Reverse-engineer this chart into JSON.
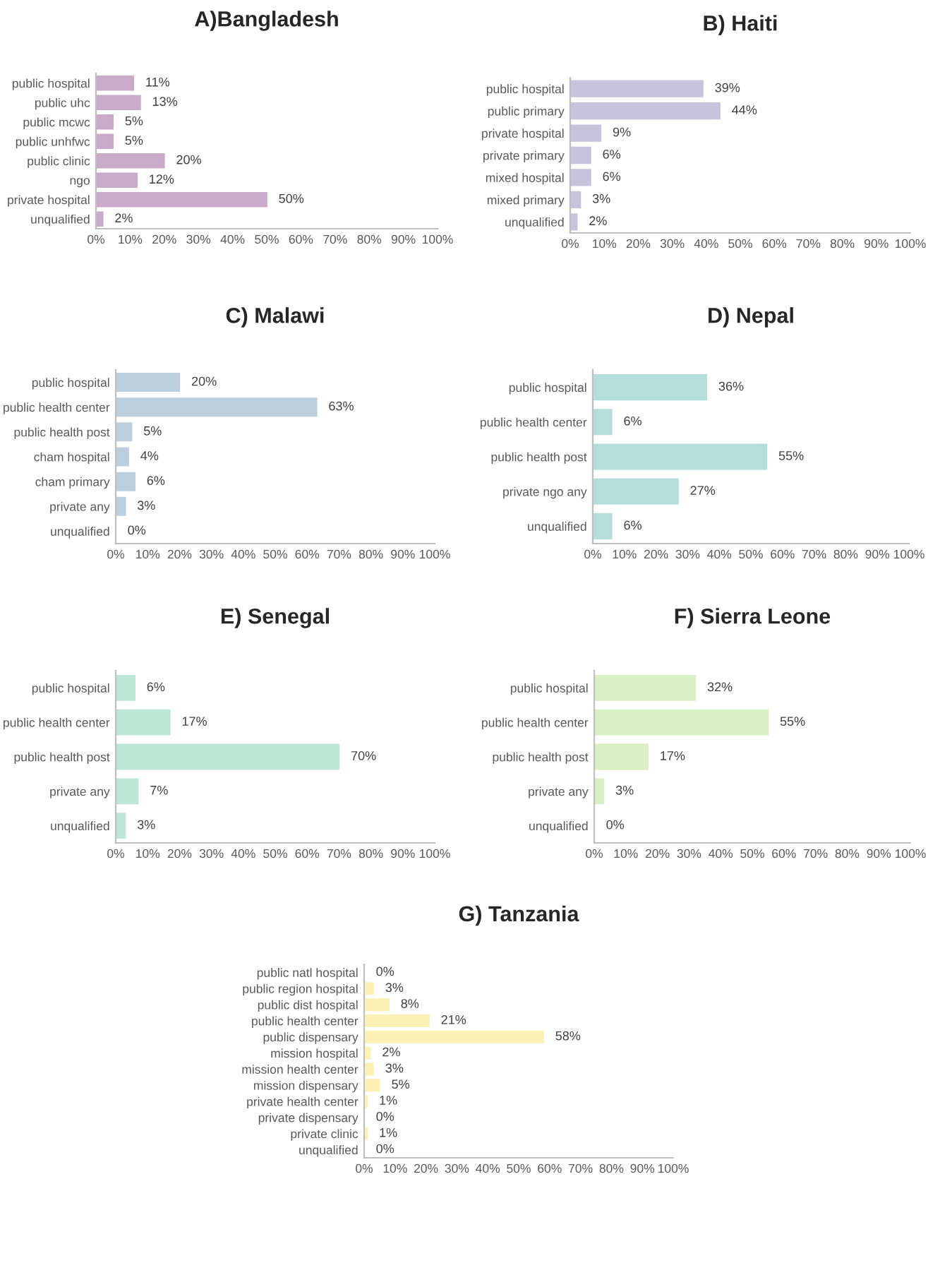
{
  "chart_data": [
    {
      "type": "bar",
      "orientation": "horizontal",
      "title": "A)Bangladesh",
      "categories": [
        "public hospital",
        "public uhc",
        "public mcwc",
        "public unhfwc",
        "public clinic",
        "ngo",
        "private hospital",
        "unqualified"
      ],
      "values": [
        11,
        13,
        5,
        5,
        20,
        12,
        50,
        2
      ],
      "value_labels": [
        "11%",
        "13%",
        "5%",
        "5%",
        "20%",
        "12%",
        "50%",
        "2%"
      ],
      "color": "#c9aac9",
      "xlim": [
        0,
        100
      ],
      "xticks": [
        {
          "value": 0,
          "label": "0%"
        },
        {
          "value": 10,
          "label": "10%"
        },
        {
          "value": 20,
          "label": "20%"
        },
        {
          "value": 30,
          "label": "30%"
        },
        {
          "value": 40,
          "label": "40%"
        },
        {
          "value": 50,
          "label": "50%"
        },
        {
          "value": 60,
          "label": "60%"
        },
        {
          "value": 70,
          "label": "70%"
        },
        {
          "value": 80,
          "label": "80%"
        },
        {
          "value": 90,
          "label": "90%"
        },
        {
          "value": 100,
          "label": "100%"
        }
      ]
    },
    {
      "type": "bar",
      "orientation": "horizontal",
      "title": "B) Haiti",
      "categories": [
        "public hospital",
        "public primary",
        "private hospital",
        "private primary",
        "mixed hospital",
        "mixed primary",
        "unqualified"
      ],
      "values": [
        39,
        44,
        9,
        6,
        6,
        3,
        2
      ],
      "value_labels": [
        "39%",
        "44%",
        "9%",
        "6%",
        "6%",
        "3%",
        "2%"
      ],
      "color": "#c6c3dd",
      "xlim": [
        0,
        100
      ],
      "xticks": [
        {
          "value": 0,
          "label": "0%"
        },
        {
          "value": 10,
          "label": "10%"
        },
        {
          "value": 20,
          "label": "20%"
        },
        {
          "value": 30,
          "label": "30%"
        },
        {
          "value": 40,
          "label": "40%"
        },
        {
          "value": 50,
          "label": "50%"
        },
        {
          "value": 60,
          "label": "60%"
        },
        {
          "value": 70,
          "label": "70%"
        },
        {
          "value": 80,
          "label": "80%"
        },
        {
          "value": 90,
          "label": "90%"
        },
        {
          "value": 100,
          "label": "100%"
        }
      ]
    },
    {
      "type": "bar",
      "orientation": "horizontal",
      "title": "C) Malawi",
      "categories": [
        "public hospital",
        "public health center",
        "public health post",
        "cham hospital",
        "cham primary",
        "private any",
        "unqualified"
      ],
      "values": [
        20,
        63,
        5,
        4,
        6,
        3,
        0
      ],
      "value_labels": [
        "20%",
        "63%",
        "5%",
        "4%",
        "6%",
        "3%",
        "0%"
      ],
      "color": "#bdcfdf",
      "xlim": [
        0,
        100
      ],
      "xticks": [
        {
          "value": 0,
          "label": "0%"
        },
        {
          "value": 10,
          "label": "10%"
        },
        {
          "value": 20,
          "label": "20%"
        },
        {
          "value": 30,
          "label": "30%"
        },
        {
          "value": 40,
          "label": "40%"
        },
        {
          "value": 50,
          "label": "50%"
        },
        {
          "value": 60,
          "label": "60%"
        },
        {
          "value": 70,
          "label": "70%"
        },
        {
          "value": 80,
          "label": "80%"
        },
        {
          "value": 90,
          "label": "90%"
        },
        {
          "value": 100,
          "label": "100%"
        }
      ]
    },
    {
      "type": "bar",
      "orientation": "horizontal",
      "title": "D) Nepal",
      "categories": [
        "public hospital",
        "public health center",
        "public health post",
        "private ngo any",
        "unqualified"
      ],
      "values": [
        36,
        6,
        55,
        27,
        6
      ],
      "value_labels": [
        "36%",
        "6%",
        "55%",
        "27%",
        "6%"
      ],
      "color": "#b5dedb",
      "xlim": [
        0,
        100
      ],
      "xticks": [
        {
          "value": 0,
          "label": "0%"
        },
        {
          "value": 10,
          "label": "10%"
        },
        {
          "value": 20,
          "label": "20%"
        },
        {
          "value": 30,
          "label": "30%"
        },
        {
          "value": 40,
          "label": "40%"
        },
        {
          "value": 50,
          "label": "50%"
        },
        {
          "value": 60,
          "label": "60%"
        },
        {
          "value": 70,
          "label": "70%"
        },
        {
          "value": 80,
          "label": "80%"
        },
        {
          "value": 90,
          "label": "90%"
        },
        {
          "value": 100,
          "label": "100%"
        }
      ]
    },
    {
      "type": "bar",
      "orientation": "horizontal",
      "title": "E) Senegal",
      "categories": [
        "public hospital",
        "public health center",
        "public health post",
        "private any",
        "unqualified"
      ],
      "values": [
        6,
        17,
        70,
        7,
        3
      ],
      "value_labels": [
        "6%",
        "17%",
        "70%",
        "7%",
        "3%"
      ],
      "color": "#bde7d4",
      "xlim": [
        0,
        100
      ],
      "xticks": [
        {
          "value": 0,
          "label": "0%"
        },
        {
          "value": 10,
          "label": "10%"
        },
        {
          "value": 20,
          "label": "20%"
        },
        {
          "value": 30,
          "label": "30%"
        },
        {
          "value": 40,
          "label": "40%"
        },
        {
          "value": 50,
          "label": "50%"
        },
        {
          "value": 60,
          "label": "60%"
        },
        {
          "value": 70,
          "label": "70%"
        },
        {
          "value": 80,
          "label": "80%"
        },
        {
          "value": 90,
          "label": "90%"
        },
        {
          "value": 100,
          "label": "100%"
        }
      ]
    },
    {
      "type": "bar",
      "orientation": "horizontal",
      "title": "F) Sierra Leone",
      "categories": [
        "public hospital",
        "public health center",
        "public health post",
        "private any",
        "unqualified"
      ],
      "values": [
        32,
        55,
        17,
        3,
        0
      ],
      "value_labels": [
        "32%",
        "55%",
        "17%",
        "3%",
        "0%"
      ],
      "color": "#d9f0c5",
      "xlim": [
        0,
        100
      ],
      "xticks": [
        {
          "value": 0,
          "label": "0%"
        },
        {
          "value": 10,
          "label": "10%"
        },
        {
          "value": 20,
          "label": "20%"
        },
        {
          "value": 30,
          "label": "30%"
        },
        {
          "value": 40,
          "label": "40%"
        },
        {
          "value": 50,
          "label": "50%"
        },
        {
          "value": 60,
          "label": "60%"
        },
        {
          "value": 70,
          "label": "70%"
        },
        {
          "value": 80,
          "label": "80%"
        },
        {
          "value": 90,
          "label": "90%"
        },
        {
          "value": 100,
          "label": "100%"
        }
      ]
    },
    {
      "type": "bar",
      "orientation": "horizontal",
      "title": "G) Tanzania",
      "categories": [
        "public natl hospital",
        "public region hospital",
        "public dist hospital",
        "public health center",
        "public dispensary",
        "mission hospital",
        "mission health center",
        "mission dispensary",
        "private health center",
        "private dispensary",
        "private clinic",
        "unqualified"
      ],
      "values": [
        0,
        3,
        8,
        21,
        58,
        2,
        3,
        5,
        1,
        0,
        1,
        0
      ],
      "value_labels": [
        "0%",
        "3%",
        "8%",
        "21%",
        "58%",
        "2%",
        "3%",
        "5%",
        "1%",
        "0%",
        "1%",
        "0%"
      ],
      "color": "#fdf2b5",
      "xlim": [
        0,
        100
      ],
      "xticks": [
        {
          "value": 0,
          "label": "0%"
        },
        {
          "value": 10,
          "label": "10%"
        },
        {
          "value": 20,
          "label": "20%"
        },
        {
          "value": 30,
          "label": "30%"
        },
        {
          "value": 40,
          "label": "40%"
        },
        {
          "value": 50,
          "label": "50%"
        },
        {
          "value": 60,
          "label": "60%"
        },
        {
          "value": 70,
          "label": "70%"
        },
        {
          "value": 80,
          "label": "80%"
        },
        {
          "value": 90,
          "label": "90%"
        },
        {
          "value": 100,
          "label": "100%"
        }
      ]
    }
  ]
}
